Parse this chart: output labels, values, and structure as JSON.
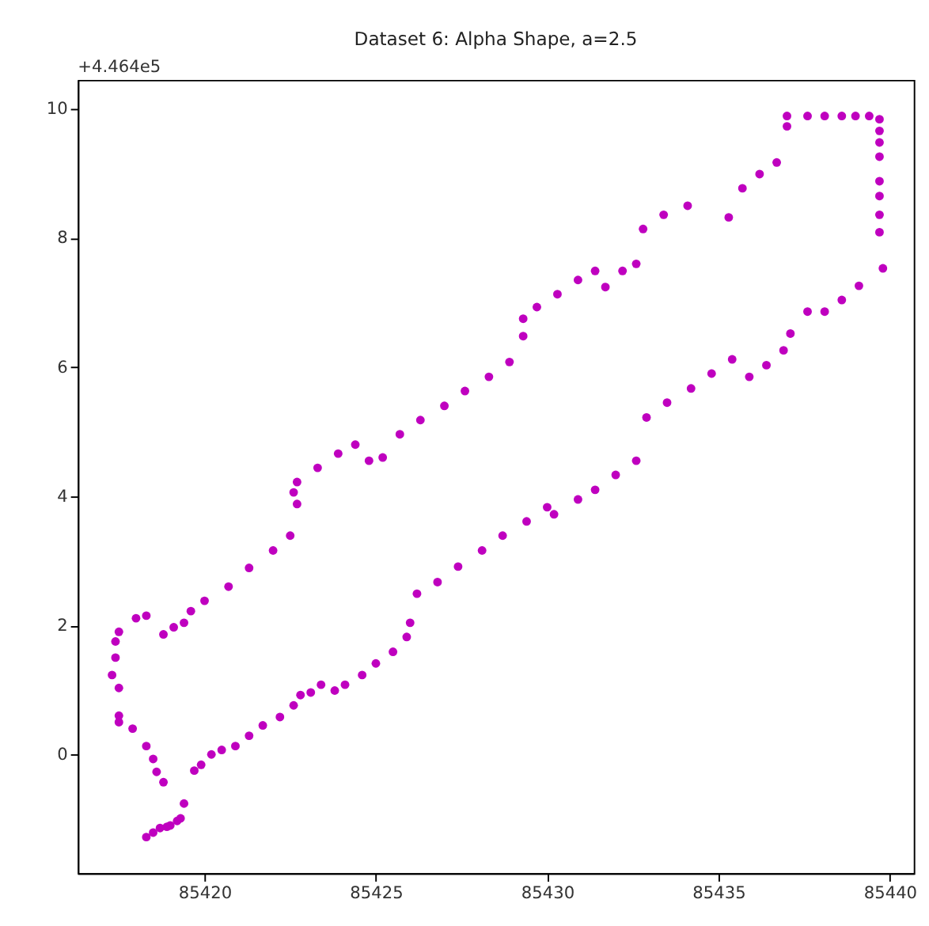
{
  "chart_data": {
    "type": "scatter",
    "title": "Dataset 6: Alpha Shape, a=2.5",
    "annotations": [
      "+4.464e5"
    ],
    "xlim": [
      85416.3,
      85440.7
    ],
    "ylim": [
      -1.84,
      10.45
    ],
    "xticks": [
      85420,
      85425,
      85430,
      85435,
      85440
    ],
    "yticks": [
      0,
      2,
      4,
      6,
      8,
      10
    ],
    "grid": false,
    "marker": "circle",
    "series": [
      {
        "color": "#bf00bf",
        "x": [
          85417.5,
          85417.4,
          85417.4,
          85417.3,
          85417.5,
          85417.5,
          85417.5,
          85417.9,
          85418.3,
          85418.5,
          85418.6,
          85418.8,
          85418.3,
          85418.5,
          85418.7,
          85418.9,
          85419.0,
          85419.2,
          85419.3,
          85419.4,
          85419.7,
          85419.9,
          85420.2,
          85420.5,
          85420.9,
          85421.3,
          85421.7,
          85422.2,
          85422.6,
          85422.8,
          85423.1,
          85423.4,
          85423.8,
          85424.1,
          85424.6,
          85425.0,
          85425.5,
          85425.9,
          85426.0,
          85426.2,
          85426.8,
          85427.4,
          85428.1,
          85428.7,
          85429.4,
          85430.0,
          85430.2,
          85430.9,
          85431.4,
          85432.0,
          85432.6,
          85432.9,
          85433.5,
          85434.2,
          85434.8,
          85435.4,
          85435.9,
          85436.4,
          85436.9,
          85437.1,
          85437.6,
          85438.1,
          85438.6,
          85439.1,
          85439.8,
          85439.7,
          85439.7,
          85439.7,
          85439.7,
          85439.7,
          85439.7,
          85439.7,
          85439.7,
          85439.4,
          85439.0,
          85438.6,
          85438.1,
          85437.6,
          85437.0,
          85437.0,
          85436.7,
          85436.2,
          85435.7,
          85435.3,
          85434.1,
          85433.4,
          85432.8,
          85432.6,
          85432.2,
          85431.7,
          85431.4,
          85430.9,
          85430.3,
          85429.7,
          85429.3,
          85429.3,
          85428.9,
          85428.3,
          85427.6,
          85427.0,
          85426.3,
          85425.7,
          85425.2,
          85424.8,
          85424.4,
          85423.9,
          85423.3,
          85422.7,
          85422.6,
          85422.7,
          85422.5,
          85422.0,
          85421.3,
          85420.7,
          85420.0,
          85419.6,
          85419.4,
          85419.1,
          85418.8,
          85418.3,
          85418.0
        ],
        "values": [
          1.9,
          1.75,
          1.5,
          1.23,
          1.03,
          0.6,
          0.5,
          0.4,
          0.13,
          -0.07,
          -0.27,
          -0.43,
          -1.28,
          -1.21,
          -1.14,
          -1.12,
          -1.1,
          -1.03,
          -0.99,
          -0.76,
          -0.25,
          -0.16,
          0,
          0.07,
          0.13,
          0.29,
          0.45,
          0.58,
          0.76,
          0.92,
          0.96,
          1.08,
          0.99,
          1.08,
          1.23,
          1.41,
          1.59,
          1.82,
          2.04,
          2.49,
          2.67,
          2.91,
          3.16,
          3.39,
          3.61,
          3.83,
          3.72,
          3.95,
          4.1,
          4.33,
          4.55,
          5.22,
          5.45,
          5.67,
          5.9,
          6.12,
          5.85,
          6.03,
          6.26,
          6.52,
          6.86,
          6.86,
          7.04,
          7.26,
          7.53,
          8.09,
          8.36,
          8.65,
          8.88,
          9.26,
          9.48,
          9.66,
          9.84,
          9.89,
          9.89,
          9.89,
          9.89,
          9.89,
          9.89,
          9.73,
          9.17,
          8.99,
          8.77,
          8.32,
          8.5,
          8.36,
          8.14,
          7.6,
          7.49,
          7.24,
          7.49,
          7.35,
          7.13,
          6.93,
          6.75,
          6.48,
          6.08,
          5.85,
          5.63,
          5.4,
          5.18,
          4.96,
          4.6,
          4.55,
          4.8,
          4.66,
          4.44,
          4.22,
          4.06,
          3.88,
          3.39,
          3.16,
          2.89,
          2.6,
          2.38,
          2.22,
          2.04,
          1.97,
          1.86,
          2.15,
          2.11
        ]
      }
    ]
  }
}
